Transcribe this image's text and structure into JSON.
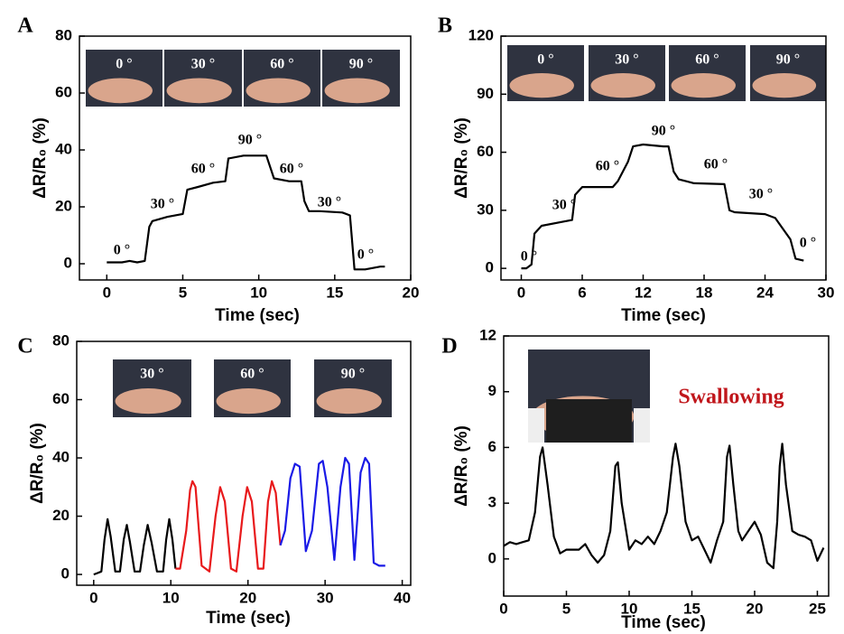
{
  "chart_data": [
    {
      "type": "line",
      "label": "A",
      "xlabel": "Time (sec)",
      "ylabel": "ΔR/R₀ (%)",
      "xlim": [
        -1.8,
        20
      ],
      "ylim": [
        -5.7,
        80
      ],
      "xticks": [
        0,
        5,
        10,
        15,
        20
      ],
      "yticks": [
        0,
        20,
        40,
        60,
        80
      ],
      "photo_labels": [
        "0 °",
        "30 °",
        "60 °",
        "90 °"
      ],
      "annotations": [
        "0 °",
        "30 °",
        "60 °",
        "90 °",
        "60 °",
        "30 °",
        "0 °"
      ],
      "series": [
        {
          "color": "#000000",
          "x": [
            0,
            1,
            1.5,
            2,
            2.5,
            2.8,
            3,
            4,
            5,
            5.3,
            6,
            7,
            7.8,
            8,
            9,
            10,
            10.5,
            11,
            12,
            12.8,
            13,
            13.3,
            14,
            15.5,
            16,
            16.3,
            17,
            18,
            18.3
          ],
          "values": [
            0.5,
            0.5,
            1,
            0.5,
            1,
            13,
            15,
            16.5,
            17.5,
            26,
            27,
            28.5,
            29,
            37,
            38,
            38,
            38,
            30,
            29,
            29,
            22,
            18.5,
            18.5,
            18,
            17,
            -2,
            -2,
            -1,
            -1
          ]
        }
      ]
    },
    {
      "type": "line",
      "label": "B",
      "xlabel": "Time (sec)",
      "ylabel": "ΔR/R₀ (%)",
      "xlim": [
        -2,
        30
      ],
      "ylim": [
        -6,
        120
      ],
      "xticks": [
        0,
        6,
        12,
        18,
        24,
        30
      ],
      "yticks": [
        0,
        30,
        60,
        90,
        120
      ],
      "photo_labels": [
        "0 °",
        "30 °",
        "60 °",
        "90 °"
      ],
      "annotations": [
        "0 °",
        "30 °",
        "60 °",
        "90 °",
        "60 °",
        "30 °",
        "0 °"
      ],
      "series": [
        {
          "color": "#000000",
          "x": [
            0,
            0.5,
            1,
            1.3,
            2,
            4,
            5,
            5.3,
            6,
            9,
            9.5,
            10.5,
            11,
            12,
            14,
            14.5,
            15,
            15.5,
            17,
            20,
            20.5,
            21,
            24,
            25,
            26.5,
            27,
            27.8
          ],
          "values": [
            0,
            0,
            2,
            18,
            22,
            24,
            25,
            38,
            42,
            42,
            45,
            55,
            63,
            64,
            63,
            63,
            50,
            46,
            44,
            43.5,
            30,
            29,
            28,
            26,
            15,
            5,
            4
          ]
        }
      ]
    },
    {
      "type": "line",
      "label": "C",
      "xlabel": "Time (sec)",
      "ylabel": "ΔR/R₀ (%)",
      "xlim": [
        -2.2,
        41.1
      ],
      "ylim": [
        -3.7,
        80
      ],
      "xticks": [
        0,
        10,
        20,
        30,
        40
      ],
      "yticks": [
        0,
        20,
        40,
        60,
        80
      ],
      "photo_labels": [
        "30 °",
        "60 °",
        "90 °"
      ],
      "annotations": [],
      "series": [
        {
          "color": "#000000",
          "x": [
            0,
            0.5,
            1,
            1.4,
            1.8,
            2.2,
            2.8,
            3.4,
            3.9,
            4.3,
            4.7,
            5.3,
            6,
            6.5,
            7,
            7.5,
            8.2,
            9,
            9.4,
            9.8,
            10.2,
            10.6
          ],
          "values": [
            0,
            0.5,
            1,
            12,
            19,
            13,
            1,
            1,
            12,
            17,
            11,
            1,
            1,
            10,
            17,
            11,
            1,
            1,
            12,
            19,
            12,
            2
          ]
        },
        {
          "color": "#e8191b",
          "x": [
            10.6,
            11.2,
            12,
            12.5,
            12.8,
            13.2,
            14,
            15,
            15.8,
            16.4,
            17,
            17.8,
            18.5,
            19.3,
            19.9,
            20.5,
            21.3,
            22,
            22.6,
            23.1,
            23.6,
            24.2
          ],
          "values": [
            2,
            2,
            15,
            29,
            32,
            30,
            3,
            1,
            20,
            30,
            25,
            2,
            1,
            20,
            30,
            25,
            2,
            2,
            25,
            32,
            28,
            10
          ]
        },
        {
          "color": "#1a1ae6",
          "x": [
            24.2,
            24.8,
            25.5,
            26.1,
            26.7,
            27.5,
            28.3,
            29.2,
            29.7,
            30.3,
            31.2,
            32,
            32.6,
            33.1,
            33.8,
            34.6,
            35.2,
            35.7,
            36.3,
            37,
            37.8
          ],
          "values": [
            10,
            15,
            33,
            38,
            37,
            8,
            15,
            38,
            39,
            30,
            5,
            30,
            40,
            38,
            5,
            35,
            40,
            38,
            4,
            3,
            3
          ]
        }
      ]
    },
    {
      "type": "line",
      "label": "D",
      "xlabel": "Time (sec)",
      "ylabel": "ΔR/R₀ (%)",
      "xlim": [
        0,
        25.9
      ],
      "ylim": [
        -2,
        12
      ],
      "xticks": [
        0,
        5,
        10,
        15,
        20,
        25
      ],
      "yticks": [
        0,
        3,
        6,
        9,
        12
      ],
      "photo_labels": [],
      "annotations": [
        "Swallowing"
      ],
      "series": [
        {
          "color": "#000000",
          "x": [
            0,
            0.5,
            1,
            1.5,
            2,
            2.5,
            2.9,
            3.1,
            3.5,
            4,
            4.5,
            5,
            6,
            6.5,
            7,
            7.5,
            8,
            8.5,
            8.9,
            9.1,
            9.4,
            10,
            10.5,
            11,
            11.5,
            12,
            12.5,
            13,
            13.5,
            13.7,
            14,
            14.5,
            15,
            15.5,
            16,
            16.5,
            17,
            17.5,
            17.8,
            18,
            18.3,
            18.7,
            19,
            19.5,
            20,
            20.5,
            21,
            21.5,
            21.8,
            22,
            22.2,
            22.5,
            23,
            23.5,
            24,
            24.5,
            25,
            25.5
          ],
          "values": [
            0.7,
            0.9,
            0.8,
            0.9,
            1,
            2.5,
            5.5,
            6,
            4,
            1.2,
            0.3,
            0.5,
            0.5,
            0.8,
            0.2,
            -0.2,
            0.2,
            1.5,
            5,
            5.2,
            3,
            0.5,
            1,
            0.8,
            1.2,
            0.8,
            1.5,
            2.5,
            5.5,
            6.2,
            5,
            2,
            1,
            1.2,
            0.5,
            -0.2,
            1,
            2,
            5.5,
            6.1,
            4,
            1.5,
            1,
            1.5,
            2,
            1.3,
            -0.2,
            -0.5,
            2,
            5,
            6.2,
            4,
            1.5,
            1.3,
            1.2,
            1,
            -0.1,
            0.6
          ]
        }
      ]
    }
  ]
}
